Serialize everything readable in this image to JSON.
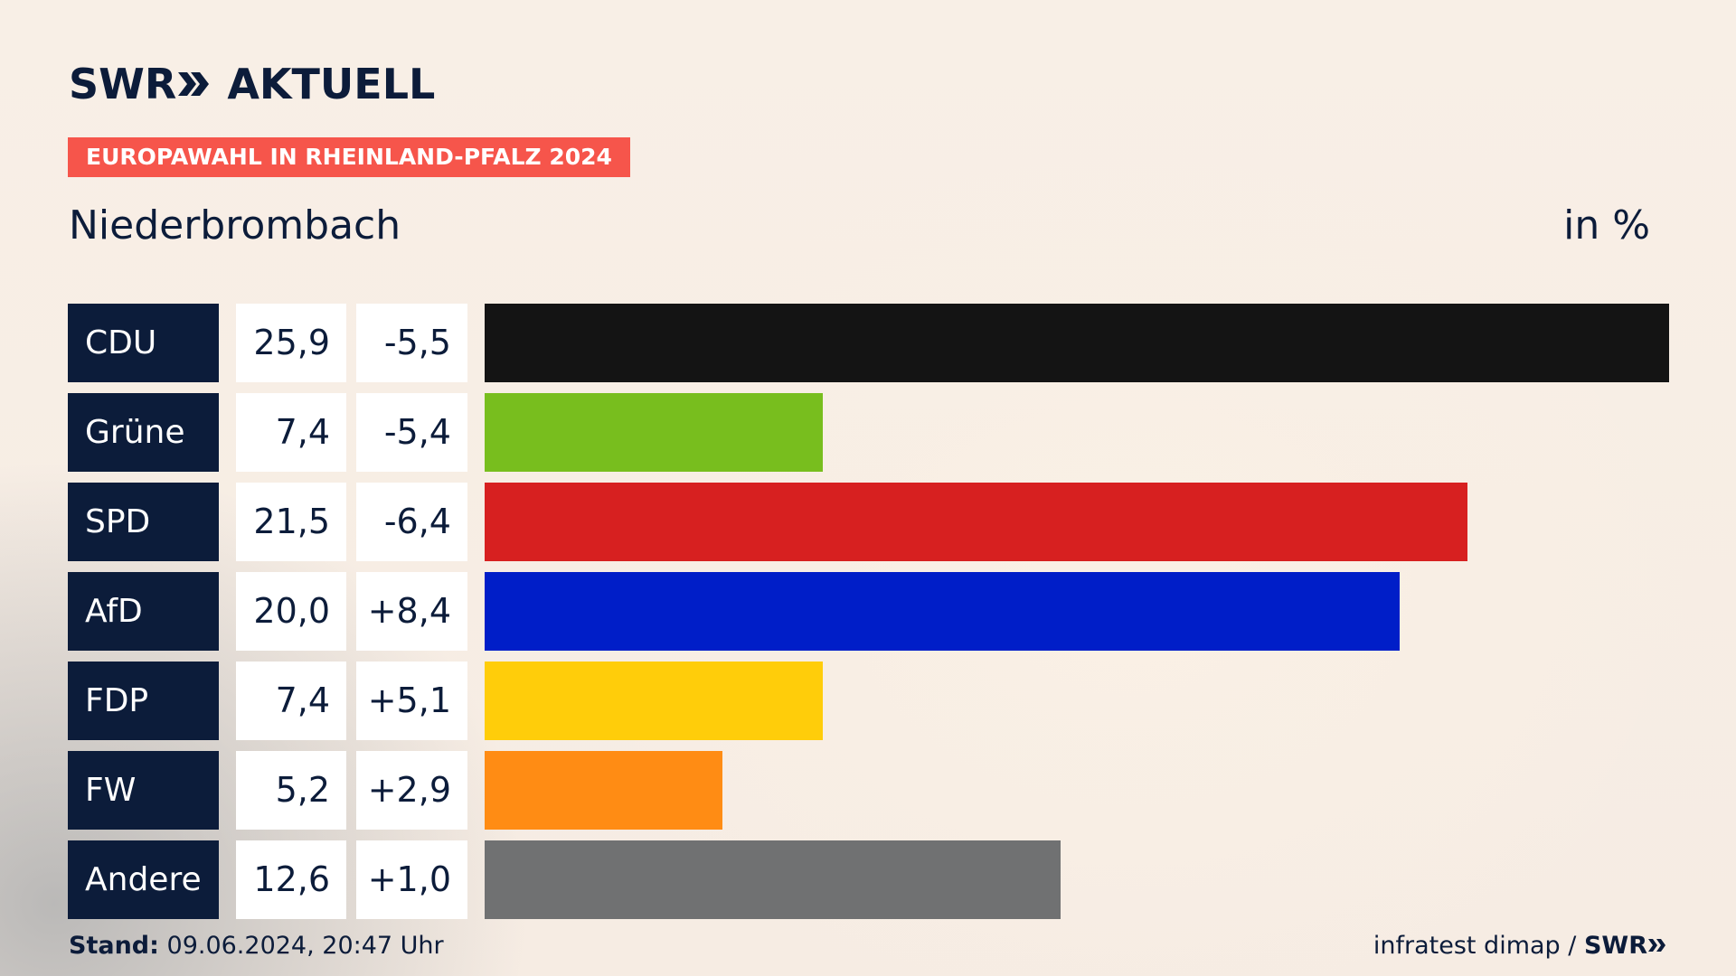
{
  "header": {
    "logo_text": "SWR",
    "logo_suffix": "AKTUELL",
    "badge": "EUROPAWAHL IN RHEINLAND-PFALZ 2024",
    "title": "Niederbrombach",
    "unit": "in %"
  },
  "chart_data": {
    "type": "bar",
    "title": "Niederbrombach",
    "categories": [
      "CDU",
      "Grüne",
      "SPD",
      "AfD",
      "FDP",
      "FW",
      "Andere"
    ],
    "values": [
      25.9,
      7.4,
      21.5,
      20.0,
      7.4,
      5.2,
      12.6
    ],
    "value_labels": [
      "25,9",
      "7,4",
      "21,5",
      "20,0",
      "7,4",
      "5,2",
      "12,6"
    ],
    "diff_labels": [
      "-5,5",
      "-5,4",
      "-6,4",
      "+8,4",
      "+5,1",
      "+2,9",
      "+1,0"
    ],
    "diffs": [
      -5.5,
      -5.4,
      -6.4,
      8.4,
      5.1,
      2.9,
      1.0
    ],
    "colors": [
      "#141414",
      "#78be1e",
      "#d72020",
      "#001ec8",
      "#ffcd0a",
      "#ff8c14",
      "#707172"
    ],
    "orientation": "horizontal",
    "xlim": [
      0,
      25.9
    ]
  },
  "footer": {
    "stand_label": "Stand:",
    "stand_value": "09.06.2024, 20:47 Uhr",
    "source": "infratest dimap /",
    "source_logo": "SWR"
  }
}
